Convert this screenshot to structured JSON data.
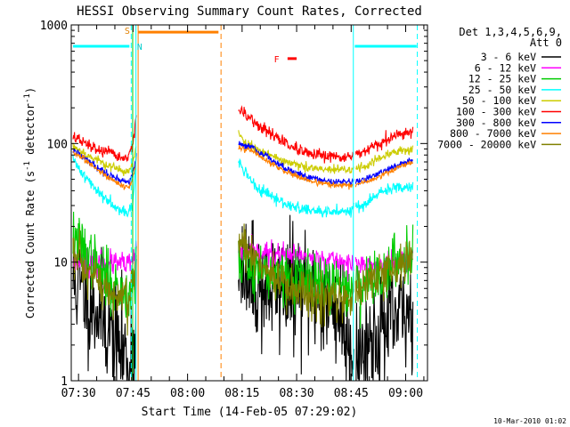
{
  "chart_data": {
    "type": "line",
    "title": "HESSI Observing Summary Count Rates, Corrected",
    "xlabel": "Start Time (14-Feb-05 07:29:02)",
    "ylabel_main": "Corrected Count Rate (s",
    "ylabel_sup1": "-1",
    "ylabel_mid": " detector",
    "ylabel_sup2": "-1",
    "ylabel_end": ")",
    "y_scale": "log",
    "ylim": [
      1,
      1000
    ],
    "xlim_minutes": [
      -1,
      97
    ],
    "x_ticks": [
      {
        "label": "07:30",
        "min": 1
      },
      {
        "label": "07:45",
        "min": 16
      },
      {
        "label": "08:00",
        "min": 31
      },
      {
        "label": "08:15",
        "min": 46
      },
      {
        "label": "08:30",
        "min": 61
      },
      {
        "label": "08:45",
        "min": 76
      },
      {
        "label": "09:00",
        "min": 91
      }
    ],
    "y_ticks": [
      {
        "label": "1",
        "value": 1
      },
      {
        "label": "10",
        "value": 10
      },
      {
        "label": "100",
        "value": 100
      },
      {
        "label": "1000",
        "value": 1000
      }
    ],
    "legend": {
      "position": "right",
      "title_line1": "Det 1,3,4,5,6,9,",
      "title_line2": "Att 0",
      "entries": [
        {
          "label": "3 - 6 keV",
          "color": "#000000"
        },
        {
          "label": "6 - 12 keV",
          "color": "#ff00ff"
        },
        {
          "label": "12 - 25 keV",
          "color": "#00cc00"
        },
        {
          "label": "25 - 50 keV",
          "color": "#00ffff"
        },
        {
          "label": "50 - 100 keV",
          "color": "#cccc00"
        },
        {
          "label": "100 - 300 keV",
          "color": "#ff0000"
        },
        {
          "label": "300 - 800 keV",
          "color": "#0000ff"
        },
        {
          "label": "800 - 7000 keV",
          "color": "#ff8000"
        },
        {
          "label": "7000 - 20000 keV",
          "color": "#808000"
        }
      ]
    },
    "data_gaps_minutes": [
      [
        17,
        45
      ],
      [
        76.8,
        77.2
      ]
    ],
    "series": [
      {
        "name": "3 - 6 keV",
        "color": "#000000",
        "noise": 0.25,
        "seed": 11,
        "points": [
          [
            -0.5,
            7
          ],
          [
            3,
            5.5
          ],
          [
            8,
            3.3
          ],
          [
            12,
            2
          ],
          [
            15,
            1.4
          ],
          [
            16.5,
            2.6
          ],
          [
            17,
            6
          ],
          [
            45,
            7
          ],
          [
            52,
            6
          ],
          [
            60,
            6
          ],
          [
            67,
            5.2
          ],
          [
            72,
            4
          ],
          [
            76,
            2
          ],
          [
            78,
            1.6
          ],
          [
            83,
            2.5
          ],
          [
            88,
            3.2
          ],
          [
            93,
            4
          ]
        ]
      },
      {
        "name": "6 - 12 keV",
        "color": "#ff00ff",
        "noise": 0.05,
        "seed": 23,
        "points": [
          [
            -0.5,
            10.5
          ],
          [
            5,
            9.8
          ],
          [
            10,
            9.8
          ],
          [
            15,
            9.5
          ],
          [
            16.5,
            11
          ],
          [
            17,
            14
          ],
          [
            45,
            12.5
          ],
          [
            55,
            11.5
          ],
          [
            62,
            11
          ],
          [
            70,
            10.5
          ],
          [
            76,
            9.5
          ],
          [
            80,
            9.3
          ],
          [
            86,
            9.8
          ],
          [
            93,
            10.5
          ]
        ]
      },
      {
        "name": "12 - 25 keV",
        "color": "#00cc00",
        "noise": 0.12,
        "seed": 37,
        "points": [
          [
            -0.5,
            16
          ],
          [
            4,
            11
          ],
          [
            8,
            7.5
          ],
          [
            13,
            5.5
          ],
          [
            15.5,
            5.5
          ],
          [
            16.5,
            8
          ],
          [
            17,
            11
          ],
          [
            45,
            10
          ],
          [
            52,
            8.3
          ],
          [
            60,
            7
          ],
          [
            68,
            6.5
          ],
          [
            76,
            6
          ],
          [
            80,
            6.8
          ],
          [
            86,
            8.5
          ],
          [
            93,
            12.5
          ]
        ]
      },
      {
        "name": "25 - 50 keV",
        "color": "#00ffff",
        "noise": 0.025,
        "seed": 41,
        "points": [
          [
            -0.5,
            72
          ],
          [
            3,
            52
          ],
          [
            6,
            40
          ],
          [
            10,
            32
          ],
          [
            14,
            26
          ],
          [
            16,
            30
          ],
          [
            17,
            90
          ],
          [
            45,
            70
          ],
          [
            50,
            42
          ],
          [
            56,
            33
          ],
          [
            62,
            28
          ],
          [
            70,
            26
          ],
          [
            76,
            28
          ],
          [
            80,
            31
          ],
          [
            85,
            40
          ],
          [
            90,
            43
          ],
          [
            93,
            45
          ]
        ]
      },
      {
        "name": "50 - 100 keV",
        "color": "#cccc00",
        "noise": 0.02,
        "seed": 53,
        "points": [
          [
            -0.5,
            95
          ],
          [
            4,
            78
          ],
          [
            8,
            68
          ],
          [
            12,
            60
          ],
          [
            15,
            58
          ],
          [
            16.5,
            78
          ],
          [
            17,
            100
          ],
          [
            45,
            125
          ],
          [
            47,
            100
          ],
          [
            52,
            85
          ],
          [
            58,
            70
          ],
          [
            64,
            62
          ],
          [
            70,
            60
          ],
          [
            76,
            60
          ],
          [
            80,
            65
          ],
          [
            85,
            78
          ],
          [
            90,
            88
          ],
          [
            93,
            90
          ]
        ]
      },
      {
        "name": "100 - 300 keV",
        "color": "#ff0000",
        "noise": 0.025,
        "seed": 67,
        "points": [
          [
            -0.5,
            115
          ],
          [
            4,
            95
          ],
          [
            8,
            85
          ],
          [
            12,
            78
          ],
          [
            14.5,
            74
          ],
          [
            16,
            100
          ],
          [
            17,
            200
          ],
          [
            45,
            190
          ],
          [
            50,
            145
          ],
          [
            56,
            110
          ],
          [
            62,
            85
          ],
          [
            68,
            77
          ],
          [
            76,
            78
          ],
          [
            80,
            85
          ],
          [
            85,
            105
          ],
          [
            90,
            120
          ],
          [
            93,
            128
          ]
        ]
      },
      {
        "name": "300 - 800 keV",
        "color": "#0000ff",
        "noise": 0.015,
        "seed": 79,
        "points": [
          [
            -0.5,
            88
          ],
          [
            4,
            70
          ],
          [
            8,
            58
          ],
          [
            12,
            50
          ],
          [
            15,
            47
          ],
          [
            16.5,
            65
          ],
          [
            17,
            85
          ],
          [
            45,
            100
          ],
          [
            48,
            95
          ],
          [
            52,
            80
          ],
          [
            58,
            62
          ],
          [
            64,
            52
          ],
          [
            70,
            48
          ],
          [
            76,
            47
          ],
          [
            80,
            50
          ],
          [
            85,
            58
          ],
          [
            90,
            68
          ],
          [
            93,
            72
          ]
        ]
      },
      {
        "name": "800 - 7000 keV",
        "color": "#ff8000",
        "noise": 0.012,
        "seed": 83,
        "points": [
          [
            -0.5,
            85
          ],
          [
            4,
            68
          ],
          [
            8,
            55
          ],
          [
            12,
            46
          ],
          [
            15,
            42
          ],
          [
            16.5,
            60
          ],
          [
            17,
            80
          ],
          [
            45,
            92
          ],
          [
            48,
            88
          ],
          [
            52,
            74
          ],
          [
            58,
            58
          ],
          [
            64,
            49
          ],
          [
            70,
            45
          ],
          [
            76,
            44
          ],
          [
            80,
            47
          ],
          [
            85,
            55
          ],
          [
            90,
            65
          ],
          [
            93,
            70
          ]
        ]
      },
      {
        "name": "7000 - 20000 keV",
        "color": "#808000",
        "noise": 0.1,
        "seed": 97,
        "points": [
          [
            -0.5,
            11.5
          ],
          [
            3,
            8
          ],
          [
            7,
            6.5
          ],
          [
            11,
            5
          ],
          [
            15,
            4.7
          ],
          [
            16.5,
            8
          ],
          [
            17,
            12
          ],
          [
            45,
            15
          ],
          [
            48,
            13
          ],
          [
            52,
            9
          ],
          [
            58,
            6
          ],
          [
            64,
            5
          ],
          [
            70,
            4.8
          ],
          [
            76,
            5.3
          ],
          [
            80,
            6.5
          ],
          [
            85,
            8
          ],
          [
            90,
            10
          ],
          [
            93,
            11.5
          ]
        ]
      }
    ],
    "annotations": [
      {
        "label": "S",
        "kind": "letter",
        "color": "#e08000",
        "min": 14.4,
        "value": 900
      },
      {
        "label": "N",
        "kind": "letter",
        "color": "#00cccc",
        "min": 17.8,
        "value": 660
      },
      {
        "label": "F",
        "kind": "letter",
        "color": "#ff0000",
        "min": 55.5,
        "value": 520
      }
    ],
    "attenuator_bars": [
      {
        "color": "#00ffff",
        "from_min": -0.5,
        "to_min": 15,
        "value": 660
      },
      {
        "color": "#00ffff",
        "from_min": 77,
        "to_min": 94,
        "value": 660
      },
      {
        "color": "#ff8000",
        "from_min": 17.5,
        "to_min": 39.5,
        "value": 870
      },
      {
        "color": "#ff0000",
        "from_min": 58.5,
        "to_min": 61,
        "value": 520
      }
    ],
    "vlines": [
      {
        "min": 15.5,
        "color": "#00ffff",
        "style": "dash"
      },
      {
        "min": 16.8,
        "color": "#00ffff",
        "style": "solid"
      },
      {
        "min": 17.4,
        "color": "#ff8000",
        "style": "solid"
      },
      {
        "min": 40.2,
        "color": "#ff8000",
        "style": "dash"
      },
      {
        "min": 76.6,
        "color": "#00ffff",
        "style": "solid"
      },
      {
        "min": 94.2,
        "color": "#00ffff",
        "style": "dash"
      },
      {
        "min": 15.9,
        "color": "#00cc00",
        "style": "solid"
      }
    ],
    "footer_date": "10-Mar-2010 01:02"
  }
}
